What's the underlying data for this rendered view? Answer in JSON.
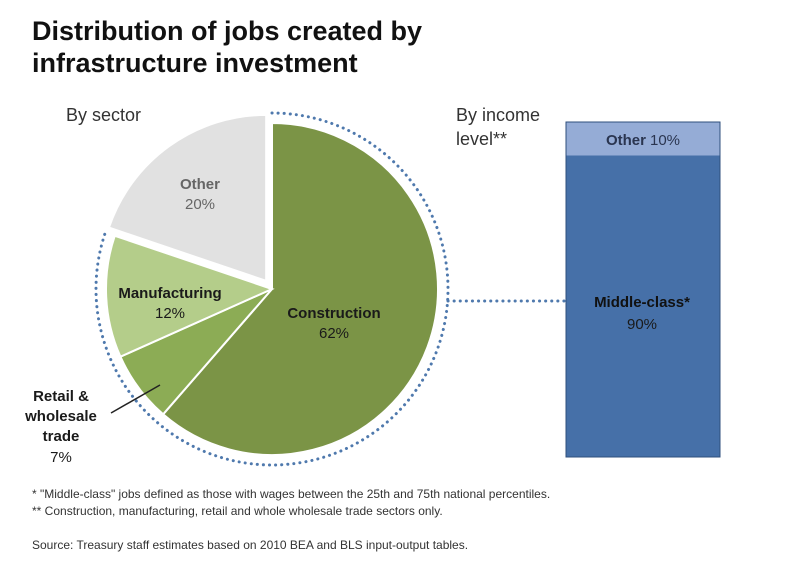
{
  "chart_data": {
    "type": "pie",
    "title_lines": [
      "Distribution of jobs created by",
      "infrastructure investment"
    ],
    "pie": {
      "subtitle": "By sector",
      "slices": [
        {
          "name": "Construction",
          "pct_label": "62%",
          "value": 62,
          "color": "#7b9446"
        },
        {
          "name": "Retail & wholesale trade",
          "name_lines": [
            "Retail &",
            "wholesale",
            "trade"
          ],
          "pct_label": "7%",
          "value": 7,
          "color": "#8cac55"
        },
        {
          "name": "Manufacturing",
          "pct_label": "12%",
          "value": 12,
          "color": "#b4cd8a"
        },
        {
          "name": "Other",
          "pct_label": "20%",
          "value": 20,
          "color": "#e1e1e1",
          "exploded": true
        }
      ]
    },
    "bar": {
      "type": "stacked-bar",
      "subtitle_lines": [
        "By income",
        "level**"
      ],
      "segments": [
        {
          "name": "Other",
          "pct_label": "10%",
          "value": 10,
          "color": "#95acd6"
        },
        {
          "name": "Middle-class*",
          "pct_label": "90%",
          "value": 90,
          "color": "#4670a8"
        }
      ]
    },
    "footnotes": [
      "* \"Middle-class\" jobs defined as those with wages between the 25th and 75th national percentiles.",
      "** Construction, manufacturing, retail and whole wholesale trade sectors only."
    ],
    "source": "Source: Treasury staff estimates based on 2010 BEA and BLS input-output tables.",
    "colors": {
      "dotted_connector": "#4f79ad",
      "bar_border": "#2f4f7c"
    }
  }
}
